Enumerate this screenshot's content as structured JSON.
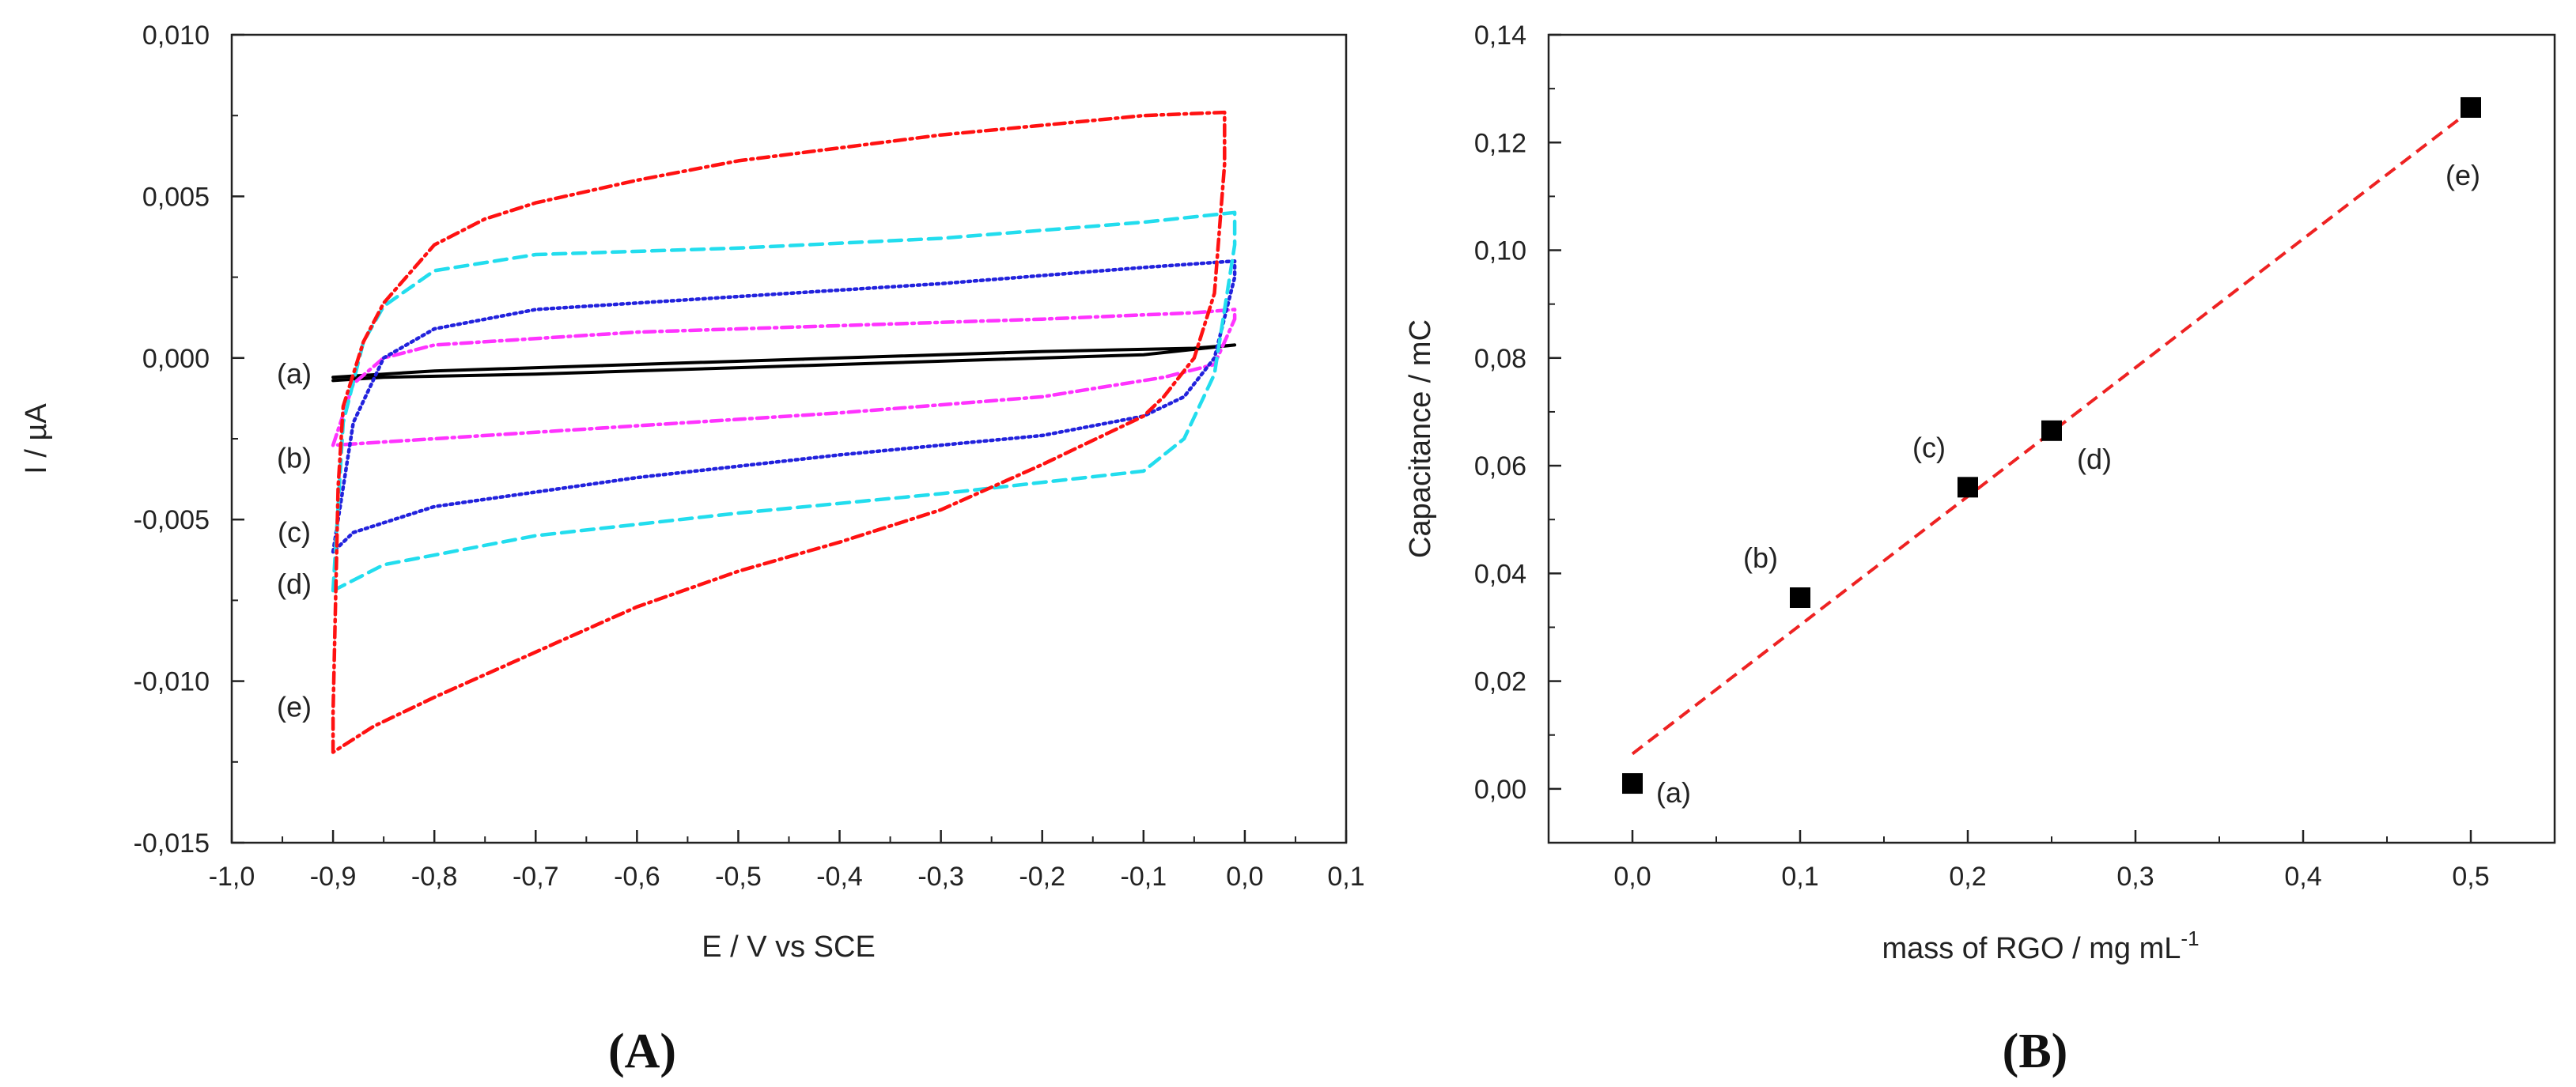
{
  "chart_data": [
    {
      "panel_label": "(A)",
      "panel_letter": "A",
      "type": "line",
      "title": "",
      "xlabel": "E / V vs SCE",
      "ylabel": "I / µA",
      "xlim": [
        -1.0,
        0.1
      ],
      "ylim": [
        -0.015,
        0.01
      ],
      "xticks": [
        -1.0,
        -0.9,
        -0.8,
        -0.7,
        -0.6,
        -0.5,
        -0.4,
        -0.3,
        -0.2,
        -0.1,
        0.0,
        0.1
      ],
      "xtick_labels": [
        "-1,0",
        "-0,9",
        "-0,8",
        "-0,7",
        "-0,6",
        "-0,5",
        "-0,4",
        "-0,3",
        "-0,2",
        "-0,1",
        "0,0",
        "0,1"
      ],
      "yticks": [
        0.01,
        0.005,
        0.0,
        -0.005,
        -0.01,
        -0.015
      ],
      "ytick_labels": [
        "0,010",
        "0,005",
        "0,000",
        "-0,005",
        "-0,010",
        "-0,015"
      ],
      "grid": false,
      "series": [
        {
          "name": "(a)",
          "color": "#000000",
          "style": "solid",
          "forward": [
            [
              -0.9,
              -0.0006
            ],
            [
              -0.8,
              -0.0004
            ],
            [
              -0.6,
              -0.0002
            ],
            [
              -0.4,
              0.0
            ],
            [
              -0.2,
              0.0002
            ],
            [
              -0.05,
              0.0003
            ],
            [
              -0.01,
              0.0004
            ]
          ],
          "reverse": [
            [
              -0.01,
              0.0004
            ],
            [
              -0.1,
              0.0001
            ],
            [
              -0.3,
              -0.0001
            ],
            [
              -0.5,
              -0.0003
            ],
            [
              -0.7,
              -0.0005
            ],
            [
              -0.85,
              -0.0006
            ],
            [
              -0.9,
              -0.0007
            ]
          ]
        },
        {
          "name": "(b)",
          "color": "#ff33ff",
          "style": "dashdot",
          "forward": [
            [
              -0.9,
              -0.0027
            ],
            [
              -0.88,
              -0.0008
            ],
            [
              -0.85,
              0.0
            ],
            [
              -0.8,
              0.0004
            ],
            [
              -0.6,
              0.0008
            ],
            [
              -0.4,
              0.001
            ],
            [
              -0.2,
              0.0012
            ],
            [
              -0.05,
              0.0014
            ],
            [
              -0.01,
              0.0015
            ]
          ],
          "reverse": [
            [
              -0.01,
              0.0012
            ],
            [
              -0.03,
              -0.0002
            ],
            [
              -0.08,
              -0.0006
            ],
            [
              -0.2,
              -0.0012
            ],
            [
              -0.4,
              -0.0017
            ],
            [
              -0.6,
              -0.0021
            ],
            [
              -0.8,
              -0.0025
            ],
            [
              -0.9,
              -0.0027
            ]
          ]
        },
        {
          "name": "(c)",
          "color": "#2222dd",
          "style": "dotted",
          "forward": [
            [
              -0.9,
              -0.006
            ],
            [
              -0.88,
              -0.002
            ],
            [
              -0.85,
              0.0
            ],
            [
              -0.8,
              0.0009
            ],
            [
              -0.7,
              0.0015
            ],
            [
              -0.5,
              0.0019
            ],
            [
              -0.3,
              0.0023
            ],
            [
              -0.1,
              0.0028
            ],
            [
              -0.01,
              0.003
            ]
          ],
          "reverse": [
            [
              -0.01,
              0.0025
            ],
            [
              -0.03,
              0.0
            ],
            [
              -0.06,
              -0.0012
            ],
            [
              -0.1,
              -0.0018
            ],
            [
              -0.2,
              -0.0024
            ],
            [
              -0.4,
              -0.003
            ],
            [
              -0.6,
              -0.0037
            ],
            [
              -0.8,
              -0.0046
            ],
            [
              -0.88,
              -0.0054
            ],
            [
              -0.9,
              -0.006
            ]
          ]
        },
        {
          "name": "(d)",
          "color": "#22ddee",
          "style": "dashed",
          "forward": [
            [
              -0.9,
              -0.0072
            ],
            [
              -0.89,
              -0.002
            ],
            [
              -0.87,
              0.0005
            ],
            [
              -0.85,
              0.0016
            ],
            [
              -0.8,
              0.0027
            ],
            [
              -0.7,
              0.0032
            ],
            [
              -0.5,
              0.0034
            ],
            [
              -0.3,
              0.0037
            ],
            [
              -0.1,
              0.0042
            ],
            [
              -0.01,
              0.0045
            ]
          ],
          "reverse": [
            [
              -0.01,
              0.0035
            ],
            [
              -0.03,
              -0.0005
            ],
            [
              -0.06,
              -0.0025
            ],
            [
              -0.1,
              -0.0035
            ],
            [
              -0.3,
              -0.0042
            ],
            [
              -0.5,
              -0.0048
            ],
            [
              -0.7,
              -0.0055
            ],
            [
              -0.85,
              -0.0064
            ],
            [
              -0.9,
              -0.0072
            ]
          ]
        },
        {
          "name": "(e)",
          "color": "#ff1111",
          "style": "dashdot",
          "forward": [
            [
              -0.9,
              -0.0122
            ],
            [
              -0.9,
              -0.011
            ],
            [
              -0.895,
              -0.004
            ],
            [
              -0.89,
              -0.0015
            ],
            [
              -0.87,
              0.0005
            ],
            [
              -0.85,
              0.0017
            ],
            [
              -0.8,
              0.0035
            ],
            [
              -0.75,
              0.0043
            ],
            [
              -0.7,
              0.0048
            ],
            [
              -0.6,
              0.0055
            ],
            [
              -0.5,
              0.0061
            ],
            [
              -0.4,
              0.0065
            ],
            [
              -0.3,
              0.0069
            ],
            [
              -0.2,
              0.0072
            ],
            [
              -0.1,
              0.0075
            ],
            [
              -0.02,
              0.0076
            ]
          ],
          "reverse": [
            [
              -0.02,
              0.0076
            ],
            [
              -0.02,
              0.006
            ],
            [
              -0.03,
              0.002
            ],
            [
              -0.05,
              0.0
            ],
            [
              -0.08,
              -0.0012
            ],
            [
              -0.1,
              -0.0018
            ],
            [
              -0.2,
              -0.0033
            ],
            [
              -0.3,
              -0.0047
            ],
            [
              -0.4,
              -0.0057
            ],
            [
              -0.5,
              -0.0066
            ],
            [
              -0.6,
              -0.0077
            ],
            [
              -0.7,
              -0.0091
            ],
            [
              -0.8,
              -0.0105
            ],
            [
              -0.86,
              -0.0114
            ],
            [
              -0.9,
              -0.0122
            ]
          ]
        }
      ],
      "curve_labels": [
        {
          "text": "(a)",
          "y": -0.0005
        },
        {
          "text": "(b)",
          "y": -0.0031
        },
        {
          "text": "(c)",
          "y": -0.0054
        },
        {
          "text": "(d)",
          "y": -0.007
        },
        {
          "text": "(e)",
          "y": -0.0108
        }
      ]
    },
    {
      "panel_label": "(B)",
      "panel_letter": "B",
      "type": "scatter",
      "title": "",
      "xlabel": "mass of RGO / mg mL",
      "xlabel_superscript": "-1",
      "ylabel": "Capacitance / mC",
      "xlim": [
        -0.05,
        0.55
      ],
      "ylim": [
        -0.01,
        0.14
      ],
      "xticks": [
        0.0,
        0.1,
        0.2,
        0.3,
        0.4,
        0.5
      ],
      "xtick_labels": [
        "0,0",
        "0,1",
        "0,2",
        "0,3",
        "0,4",
        "0,5"
      ],
      "yticks": [
        0.0,
        0.02,
        0.04,
        0.06,
        0.08,
        0.1,
        0.12,
        0.14
      ],
      "ytick_labels": [
        "0,00",
        "0,02",
        "0,04",
        "0,06",
        "0,08",
        "0,10",
        "0,12",
        "0,14"
      ],
      "grid": false,
      "points": [
        {
          "label": "(a)",
          "x": 0.0,
          "y": 0.001,
          "label_pos": "right"
        },
        {
          "label": "(b)",
          "x": 0.1,
          "y": 0.0355,
          "label_pos": "upper-left"
        },
        {
          "label": "(c)",
          "x": 0.2,
          "y": 0.056,
          "label_pos": "upper-left"
        },
        {
          "label": "(d)",
          "x": 0.25,
          "y": 0.0665,
          "label_pos": "lower-right"
        },
        {
          "label": "(e)",
          "x": 0.5,
          "y": 0.1265,
          "label_pos": "below"
        }
      ],
      "fit_line": {
        "x0": 0.0,
        "y0": 0.0065,
        "x1": 0.5,
        "y1": 0.126,
        "color": "#ee2222",
        "style": "dashed"
      },
      "marker_color": "#000000"
    }
  ]
}
